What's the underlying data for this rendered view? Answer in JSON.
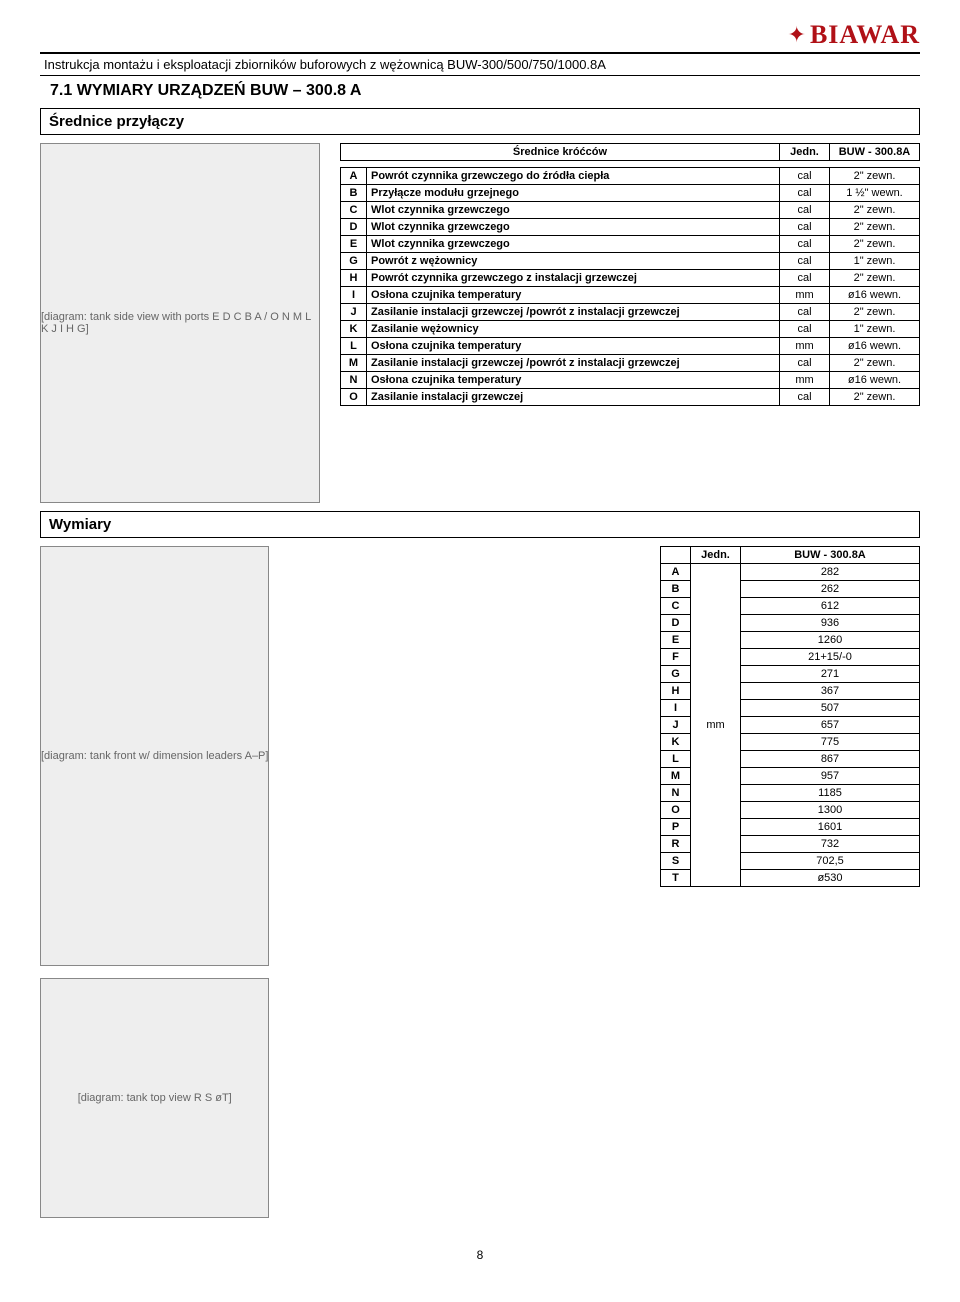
{
  "brand": {
    "name": "BIAWAR",
    "accent": "#b01117"
  },
  "headerBar": "Instrukcja montażu i eksploatacji  zbiorników buforowych z wężownicą BUW-300/500/750/1000.8A",
  "sectionTitle": "7.1 WYMIARY URZĄDZEŃ BUW – 300.8 A",
  "subsection1": "Średnice przyłączy",
  "connTable": {
    "header": {
      "label": "Średnice króćców",
      "unit": "Jedn.",
      "model": "BUW - 300.8A"
    },
    "rows": [
      {
        "code": "A",
        "desc": "Powrót czynnika grzewczego do źródła ciepła",
        "unit": "cal",
        "val": "2\" zewn."
      },
      {
        "code": "B",
        "desc": "Przyłącze modułu grzejnego",
        "unit": "cal",
        "val": "1 ½\" wewn."
      },
      {
        "code": "C",
        "desc": "Wlot czynnika grzewczego",
        "unit": "cal",
        "val": "2\" zewn."
      },
      {
        "code": "D",
        "desc": "Wlot czynnika grzewczego",
        "unit": "cal",
        "val": "2\" zewn."
      },
      {
        "code": "E",
        "desc": "Wlot czynnika grzewczego",
        "unit": "cal",
        "val": "2\" zewn."
      },
      {
        "code": "G",
        "desc": "Powrót z wężownicy",
        "unit": "cal",
        "val": "1\" zewn."
      },
      {
        "code": "H",
        "desc": "Powrót czynnika grzewczego z instalacji grzewczej",
        "unit": "cal",
        "val": "2\" zewn."
      },
      {
        "code": "I",
        "desc": "Osłona czujnika temperatury",
        "unit": "mm",
        "val": "ø16 wewn."
      },
      {
        "code": "J",
        "desc": "Zasilanie instalacji grzewczej /powrót z instalacji grzewczej",
        "unit": "cal",
        "val": "2\" zewn."
      },
      {
        "code": "K",
        "desc": "Zasilanie wężownicy",
        "unit": "cal",
        "val": "1\" zewn."
      },
      {
        "code": "L",
        "desc": "Osłona czujnika temperatury",
        "unit": "mm",
        "val": "ø16 wewn."
      },
      {
        "code": "M",
        "desc": "Zasilanie instalacji grzewczej /powrót z instalacji grzewczej",
        "unit": "cal",
        "val": "2\" zewn."
      },
      {
        "code": "N",
        "desc": "Osłona czujnika temperatury",
        "unit": "mm",
        "val": "ø16 wewn."
      },
      {
        "code": "O",
        "desc": "Zasilanie instalacji grzewczej",
        "unit": "cal",
        "val": "2\" zewn."
      }
    ]
  },
  "subsection2": "Wymiary",
  "dimsTable": {
    "header": {
      "unit": "Jedn.",
      "model": "BUW - 300.8A"
    },
    "unit": "mm",
    "rows": [
      {
        "code": "A",
        "val": "282"
      },
      {
        "code": "B",
        "val": "262"
      },
      {
        "code": "C",
        "val": "612"
      },
      {
        "code": "D",
        "val": "936"
      },
      {
        "code": "E",
        "val": "1260"
      },
      {
        "code": "F",
        "val": "21+15/-0"
      },
      {
        "code": "G",
        "val": "271"
      },
      {
        "code": "H",
        "val": "367"
      },
      {
        "code": "I",
        "val": "507"
      },
      {
        "code": "J",
        "val": "657"
      },
      {
        "code": "K",
        "val": "775"
      },
      {
        "code": "L",
        "val": "867"
      },
      {
        "code": "M",
        "val": "957"
      },
      {
        "code": "N",
        "val": "1185"
      },
      {
        "code": "O",
        "val": "1300"
      },
      {
        "code": "P",
        "val": "1601"
      },
      {
        "code": "R",
        "val": "732"
      },
      {
        "code": "S",
        "val": "702,5"
      },
      {
        "code": "T",
        "val": "ø530"
      }
    ]
  },
  "diagrams": {
    "side": "[diagram: tank side view with ports E D C B A / O N M L K J I H G]",
    "front": "[diagram: tank front w/ dimension leaders A–P]",
    "top": "[diagram: tank top view R S øT]"
  },
  "pageNumber": "8"
}
